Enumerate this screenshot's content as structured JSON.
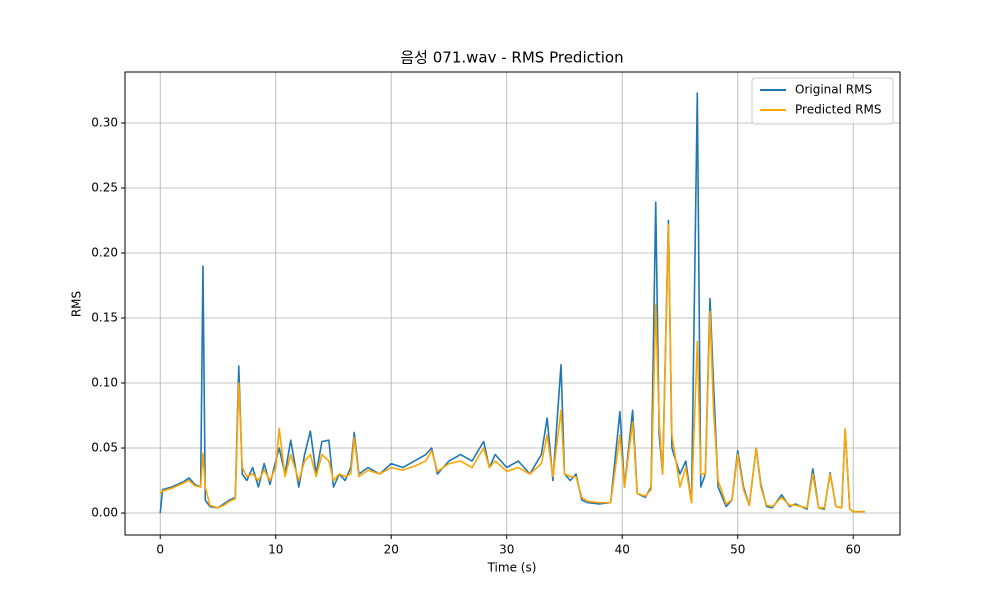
{
  "chart_data": {
    "type": "line",
    "title": "음성 071.wav - RMS Prediction",
    "x_label": "Time (s)",
    "y_label": "RMS",
    "x": [
      0,
      0.2,
      1,
      2,
      2.5,
      3,
      3.5,
      3.7,
      3.9,
      4.3,
      5,
      5.5,
      6,
      6.5,
      6.8,
      7.1,
      7.5,
      8,
      8.5,
      9,
      9.5,
      10,
      10.3,
      10.8,
      11.3,
      12,
      12.5,
      13,
      13.5,
      14,
      14.6,
      15,
      15.5,
      16,
      16.5,
      16.8,
      17.2,
      18,
      19,
      20,
      21,
      22,
      23,
      23.5,
      24,
      25,
      26,
      27,
      28,
      28.5,
      29,
      30,
      31,
      32,
      33,
      33.5,
      34,
      34.7,
      35,
      35.5,
      36,
      36.5,
      37,
      38,
      39,
      39.8,
      40.2,
      40.9,
      41.3,
      42,
      42.5,
      42.9,
      43.2,
      43.5,
      44.0,
      44.3,
      45,
      45.5,
      46,
      46.5,
      46.8,
      47.2,
      47.6,
      47.9,
      48.3,
      49,
      49.5,
      50,
      50.5,
      51,
      51.6,
      52,
      52.5,
      53,
      53.8,
      54.5,
      55,
      56,
      56.5,
      57,
      57.5,
      58,
      58.5,
      59,
      59.3,
      59.7,
      60,
      61
    ],
    "series": [
      {
        "name": "Original RMS",
        "color": "#1f77b4",
        "values": [
          0.0,
          0.018,
          0.02,
          0.024,
          0.027,
          0.022,
          0.02,
          0.19,
          0.01,
          0.005,
          0.004,
          0.007,
          0.01,
          0.012,
          0.113,
          0.03,
          0.025,
          0.035,
          0.02,
          0.038,
          0.022,
          0.04,
          0.05,
          0.03,
          0.056,
          0.02,
          0.045,
          0.063,
          0.03,
          0.055,
          0.056,
          0.02,
          0.03,
          0.025,
          0.035,
          0.062,
          0.03,
          0.035,
          0.03,
          0.038,
          0.035,
          0.04,
          0.045,
          0.05,
          0.03,
          0.04,
          0.045,
          0.04,
          0.055,
          0.035,
          0.045,
          0.035,
          0.04,
          0.03,
          0.045,
          0.073,
          0.025,
          0.114,
          0.03,
          0.025,
          0.03,
          0.01,
          0.008,
          0.007,
          0.008,
          0.078,
          0.02,
          0.079,
          0.015,
          0.012,
          0.02,
          0.239,
          0.06,
          0.03,
          0.225,
          0.05,
          0.03,
          0.04,
          0.008,
          0.323,
          0.02,
          0.03,
          0.165,
          0.1,
          0.02,
          0.005,
          0.01,
          0.048,
          0.02,
          0.006,
          0.05,
          0.022,
          0.005,
          0.004,
          0.014,
          0.005,
          0.007,
          0.003,
          0.034,
          0.004,
          0.003,
          0.031,
          0.005,
          0.004,
          0.064,
          0.003,
          0.001,
          0.001
        ]
      },
      {
        "name": "Predicted RMS",
        "color": "#ffa500",
        "values": [
          0.015,
          0.017,
          0.019,
          0.023,
          0.025,
          0.021,
          0.02,
          0.046,
          0.02,
          0.006,
          0.004,
          0.006,
          0.009,
          0.011,
          0.1,
          0.035,
          0.028,
          0.03,
          0.025,
          0.033,
          0.025,
          0.035,
          0.065,
          0.028,
          0.045,
          0.025,
          0.04,
          0.045,
          0.028,
          0.045,
          0.04,
          0.025,
          0.03,
          0.028,
          0.03,
          0.058,
          0.028,
          0.033,
          0.03,
          0.035,
          0.033,
          0.036,
          0.04,
          0.048,
          0.032,
          0.038,
          0.04,
          0.035,
          0.05,
          0.035,
          0.04,
          0.032,
          0.035,
          0.03,
          0.038,
          0.06,
          0.028,
          0.079,
          0.03,
          0.028,
          0.028,
          0.012,
          0.009,
          0.008,
          0.008,
          0.06,
          0.02,
          0.07,
          0.015,
          0.013,
          0.018,
          0.16,
          0.07,
          0.03,
          0.222,
          0.06,
          0.02,
          0.035,
          0.008,
          0.132,
          0.03,
          0.03,
          0.155,
          0.08,
          0.025,
          0.007,
          0.01,
          0.045,
          0.018,
          0.006,
          0.05,
          0.02,
          0.006,
          0.005,
          0.012,
          0.006,
          0.006,
          0.004,
          0.03,
          0.004,
          0.004,
          0.03,
          0.005,
          0.004,
          0.065,
          0.003,
          0.001,
          0.001
        ]
      }
    ],
    "xlim": [
      -3.05,
      64.05
    ],
    "ylim": [
      -0.0169,
      0.3392
    ],
    "xticks": [
      0,
      10,
      20,
      30,
      40,
      50,
      60
    ],
    "yticks": [
      {
        "value": 0,
        "label": "0.00"
      },
      {
        "value": 0.05,
        "label": "0.05"
      },
      {
        "value": 0.1,
        "label": "0.10"
      },
      {
        "value": 0.15,
        "label": "0.15"
      },
      {
        "value": 0.2,
        "label": "0.20"
      },
      {
        "value": 0.25,
        "label": "0.25"
      },
      {
        "value": 0.3,
        "label": "0.30"
      }
    ],
    "grid": true,
    "legend": "upper right"
  }
}
